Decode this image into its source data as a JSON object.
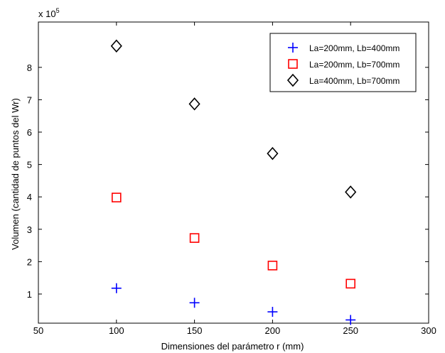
{
  "chart_data": {
    "type": "scatter",
    "title": "",
    "xlabel": "Dimensiones del parámetro r (mm)",
    "ylabel": "Volumen (cantidad de puntos del Wr)",
    "xlim": [
      50,
      300
    ],
    "ylim": [
      10000,
      940000
    ],
    "xticks": [
      50,
      100,
      150,
      200,
      250,
      300
    ],
    "xtick_labels": [
      "50",
      "100",
      "150",
      "200",
      "250",
      "300"
    ],
    "yticks": [
      100000,
      200000,
      300000,
      400000,
      500000,
      600000,
      700000,
      800000
    ],
    "ytick_labels": [
      "1",
      "2",
      "3",
      "4",
      "5",
      "6",
      "7",
      "8"
    ],
    "y_multiplier": {
      "base": "x 10",
      "exponent": "5"
    },
    "grid": false,
    "legend_position": "top-right",
    "series": [
      {
        "name": "La=200mm, Lb=400mm",
        "marker": "plus",
        "color": "#0000ff",
        "x": [
          100,
          150,
          200,
          250
        ],
        "y": [
          118000,
          73000,
          45000,
          20000
        ]
      },
      {
        "name": "La=200mm, Lb=700mm",
        "marker": "square",
        "color": "#ff0000",
        "x": [
          100,
          150,
          200,
          250
        ],
        "y": [
          398000,
          273000,
          188000,
          132000
        ]
      },
      {
        "name": "La=400mm, Lb=700mm",
        "marker": "diamond",
        "color": "#000000",
        "x": [
          100,
          150,
          200,
          250
        ],
        "y": [
          866000,
          687000,
          534000,
          415000
        ]
      }
    ]
  }
}
